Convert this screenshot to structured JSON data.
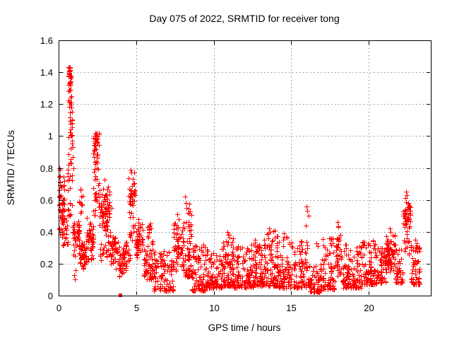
{
  "chart_data": {
    "type": "scatter",
    "title": "Day 075 of 2022, SRMTID for receiver tong",
    "xlabel": "GPS time / hours",
    "ylabel": "SRMTID / TECUs",
    "xlim": [
      0,
      24
    ],
    "ylim": [
      0,
      1.6
    ],
    "xticks": [
      0,
      5,
      10,
      15,
      20
    ],
    "xtick_labels": [
      "0",
      "5",
      "10",
      "15",
      "20"
    ],
    "yticks": [
      0,
      0.2,
      0.4,
      0.6,
      0.8,
      1,
      1.2,
      1.4,
      1.6
    ],
    "ytick_labels": [
      "0",
      "0.2",
      "0.4",
      "0.6",
      "0.8",
      "1",
      "1.2",
      "1.4",
      "1.6"
    ],
    "grid": true,
    "legend": "none",
    "marker": "plus",
    "marker_color": "#ff0000",
    "grid_color": "#8a8a8a",
    "axis_color": "#000000",
    "background_color": "#ffffff",
    "ymax_observed": 1.43,
    "xmax_observed": 23.3,
    "square_point": [
      3.96,
      0.005
    ],
    "outlier_points": [
      [
        0.05,
        0.8
      ],
      [
        0.1,
        0.79
      ],
      [
        0.08,
        0.75
      ],
      [
        0.72,
        1.43
      ],
      [
        0.7,
        1.41
      ],
      [
        0.75,
        1.41
      ],
      [
        0.68,
        1.39
      ],
      [
        0.73,
        1.38
      ],
      [
        0.77,
        1.36
      ],
      [
        0.71,
        1.34
      ],
      [
        0.76,
        1.32
      ],
      [
        0.74,
        1.29
      ],
      [
        0.8,
        1.25
      ],
      [
        0.82,
        1.21
      ],
      [
        0.8,
        1.18
      ],
      [
        0.85,
        1.1
      ],
      [
        0.87,
        1.08
      ],
      [
        0.83,
        1.0
      ],
      [
        0.88,
        0.97
      ],
      [
        0.9,
        0.93
      ],
      [
        0.92,
        0.87
      ],
      [
        0.95,
        0.8
      ],
      [
        1.0,
        0.13
      ],
      [
        1.05,
        0.1
      ],
      [
        1.1,
        0.16
      ],
      [
        1.4,
        0.66
      ],
      [
        1.45,
        0.62
      ],
      [
        1.42,
        0.58
      ],
      [
        2.35,
        1.02
      ],
      [
        2.4,
        1.0
      ],
      [
        2.3,
        0.99
      ],
      [
        2.45,
        0.97
      ],
      [
        2.38,
        0.94
      ],
      [
        3.42,
        0.55
      ],
      [
        4.65,
        0.79
      ],
      [
        4.7,
        0.77
      ],
      [
        5.15,
        0.48
      ],
      [
        5.9,
        0.45
      ],
      [
        5.95,
        0.42
      ],
      [
        7.65,
        0.51
      ],
      [
        7.75,
        0.48
      ],
      [
        8.15,
        0.62
      ],
      [
        8.2,
        0.58
      ],
      [
        8.25,
        0.55
      ],
      [
        8.35,
        0.52
      ],
      [
        10.9,
        0.4
      ],
      [
        10.95,
        0.38
      ],
      [
        13.55,
        0.42
      ],
      [
        13.6,
        0.4
      ],
      [
        14.55,
        0.39
      ],
      [
        16.0,
        0.56
      ],
      [
        16.05,
        0.53
      ],
      [
        16.1,
        0.5
      ],
      [
        15.95,
        0.44
      ],
      [
        16.6,
        0.33
      ],
      [
        16.7,
        0.31
      ],
      [
        17.55,
        0.36
      ],
      [
        18.0,
        0.46
      ],
      [
        18.05,
        0.43
      ],
      [
        21.35,
        0.42
      ],
      [
        21.4,
        0.4
      ],
      [
        22.4,
        0.65
      ],
      [
        22.45,
        0.63
      ],
      [
        22.35,
        0.61
      ],
      [
        23.0,
        0.35
      ]
    ],
    "density_segments": [
      [
        0.02,
        0.4,
        0.28,
        0.78,
        55,
        "m"
      ],
      [
        0.2,
        0.6,
        0.3,
        0.5,
        20,
        "u"
      ],
      [
        0.55,
        0.9,
        0.5,
        0.95,
        25,
        "u"
      ],
      [
        0.6,
        0.88,
        0.95,
        1.3,
        22,
        "u"
      ],
      [
        0.63,
        0.82,
        1.3,
        1.43,
        22,
        "t"
      ],
      [
        0.9,
        1.35,
        0.22,
        0.52,
        45,
        "m"
      ],
      [
        1.3,
        1.55,
        0.5,
        0.67,
        10,
        "u"
      ],
      [
        1.35,
        1.8,
        0.14,
        0.38,
        45,
        "m"
      ],
      [
        1.8,
        2.25,
        0.18,
        0.5,
        40,
        "m"
      ],
      [
        2.22,
        2.62,
        0.88,
        1.02,
        24,
        "t"
      ],
      [
        2.2,
        2.65,
        0.5,
        0.9,
        35,
        "u"
      ],
      [
        2.65,
        3.3,
        0.35,
        0.74,
        65,
        "m"
      ],
      [
        2.65,
        3.35,
        0.22,
        0.42,
        25,
        "u"
      ],
      [
        3.3,
        3.85,
        0.15,
        0.45,
        45,
        "m"
      ],
      [
        3.85,
        4.35,
        0.1,
        0.33,
        40,
        "m"
      ],
      [
        4.3,
        4.6,
        0.15,
        0.38,
        18,
        "m"
      ],
      [
        4.5,
        4.9,
        0.5,
        0.78,
        32,
        "m"
      ],
      [
        4.55,
        4.95,
        0.28,
        0.52,
        15,
        "u"
      ],
      [
        4.95,
        5.45,
        0.2,
        0.48,
        45,
        "m"
      ],
      [
        5.45,
        5.7,
        0.12,
        0.3,
        20,
        "b"
      ],
      [
        5.7,
        6.15,
        0.1,
        0.47,
        55,
        "b"
      ],
      [
        6.15,
        7.4,
        0.03,
        0.28,
        95,
        "b"
      ],
      [
        7.4,
        8.05,
        0.12,
        0.5,
        60,
        "m"
      ],
      [
        8.05,
        8.6,
        0.12,
        0.58,
        65,
        "b"
      ],
      [
        8.6,
        9.55,
        0.03,
        0.32,
        85,
        "b"
      ],
      [
        9.55,
        10.6,
        0.05,
        0.3,
        100,
        "b"
      ],
      [
        10.6,
        11.3,
        0.06,
        0.4,
        85,
        "b"
      ],
      [
        11.3,
        12.55,
        0.05,
        0.33,
        110,
        "b"
      ],
      [
        12.55,
        13.25,
        0.06,
        0.36,
        85,
        "b"
      ],
      [
        13.25,
        14.1,
        0.06,
        0.42,
        90,
        "b"
      ],
      [
        14.1,
        15.2,
        0.05,
        0.38,
        100,
        "b"
      ],
      [
        15.2,
        16.2,
        0.05,
        0.36,
        75,
        "b"
      ],
      [
        16.2,
        16.95,
        0.02,
        0.2,
        60,
        "b"
      ],
      [
        16.95,
        17.8,
        0.04,
        0.36,
        70,
        "b"
      ],
      [
        17.85,
        18.25,
        0.08,
        0.46,
        40,
        "m"
      ],
      [
        18.25,
        19.5,
        0.05,
        0.32,
        110,
        "b"
      ],
      [
        19.5,
        20.45,
        0.07,
        0.35,
        85,
        "b"
      ],
      [
        20.45,
        21.1,
        0.08,
        0.3,
        60,
        "b"
      ],
      [
        21.1,
        21.7,
        0.12,
        0.4,
        70,
        "m"
      ],
      [
        21.7,
        22.2,
        0.08,
        0.32,
        45,
        "b"
      ],
      [
        22.2,
        22.7,
        0.38,
        0.62,
        45,
        "m"
      ],
      [
        22.2,
        22.7,
        0.25,
        0.4,
        12,
        "u"
      ],
      [
        22.7,
        23.3,
        0.07,
        0.33,
        65,
        "b"
      ]
    ]
  }
}
